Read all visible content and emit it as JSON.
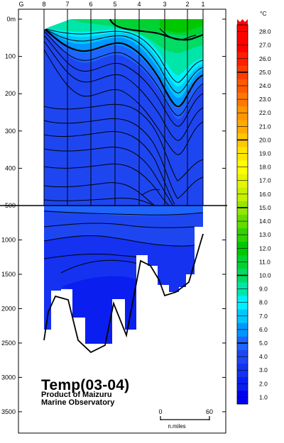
{
  "chart_data": {
    "type": "heatmap",
    "title": "Temp(03-04)",
    "credit_line1": "Product of Maizuru",
    "credit_line2": "Marine Observatory",
    "station_axis": {
      "label": "G",
      "stations": [
        "8",
        "7",
        "6",
        "5",
        "4",
        "3",
        "2",
        "1"
      ]
    },
    "depth_axis": {
      "unit_label": "0m",
      "upper_ticks": [
        0,
        100,
        200,
        300,
        400,
        500
      ],
      "upper_labels": [
        "0m",
        "100",
        "200",
        "300",
        "400",
        "500"
      ],
      "lower_ticks": [
        1000,
        1500,
        2000,
        2500,
        3000,
        3500
      ],
      "lower_labels": [
        "1000",
        "1500",
        "2000",
        "2500",
        "3000",
        "3500"
      ],
      "scale_break_depth": 500,
      "upper_range": [
        0,
        500
      ],
      "lower_range": [
        500,
        3800
      ]
    },
    "scale_bar": {
      "min_label": "0",
      "max_label": "60",
      "unit_label": "n.miles"
    },
    "colorbar": {
      "unit": "°C",
      "levels": [
        1.0,
        2.0,
        3.0,
        4.0,
        5.0,
        6.0,
        7.0,
        8.0,
        9.0,
        10.0,
        11.0,
        12.0,
        13.0,
        14.0,
        15.0,
        16.0,
        17.0,
        18.0,
        19.0,
        20.0,
        21.0,
        22.0,
        23.0,
        24.0,
        25.0,
        26.0,
        27.0,
        28.0
      ],
      "labels": [
        "1.0",
        "2.0",
        "3.0",
        "4.0",
        "5.0",
        "6.0",
        "7.0",
        "8.0",
        "9.0",
        "10.0",
        "11.0",
        "12.0",
        "13.0",
        "14.0",
        "15.0",
        "16.0",
        "17.0",
        "18.0",
        "19.0",
        "20.0",
        "21.0",
        "22.0",
        "23.0",
        "24.0",
        "25.0",
        "26.0",
        "27.0",
        "28.0"
      ],
      "colors": [
        "#0000f0",
        "#0a1ef0",
        "#1432f0",
        "#1e46f0",
        "#1e64ff",
        "#0096ff",
        "#00c8ff",
        "#00f0ff",
        "#00e6aa",
        "#00dc64",
        "#00d232",
        "#00c800",
        "#32d200",
        "#64dc00",
        "#96e600",
        "#c8f000",
        "#e6f500",
        "#ffff00",
        "#ffe600",
        "#ffc800",
        "#ffaa00",
        "#ff9600",
        "#ff7800",
        "#ff5a00",
        "#ff3c00",
        "#ff1e00",
        "#ff0000",
        "#ff0000"
      ],
      "bold_levels": [
        5.0,
        10.0,
        15.0,
        20.0,
        25.0
      ]
    },
    "sections": [
      {
        "station": "8",
        "bottom_depth": 2300
      },
      {
        "station": "7",
        "bottom_depth": 1750
      },
      {
        "station": "6",
        "bottom_depth": 2500
      },
      {
        "station": "5",
        "bottom_depth": 1870
      },
      {
        "station": "4",
        "bottom_depth": 1250
      },
      {
        "station": "3",
        "bottom_depth": 1680
      },
      {
        "station": "2",
        "bottom_depth": 1500
      },
      {
        "station": "1",
        "bottom_depth": 650
      }
    ]
  }
}
